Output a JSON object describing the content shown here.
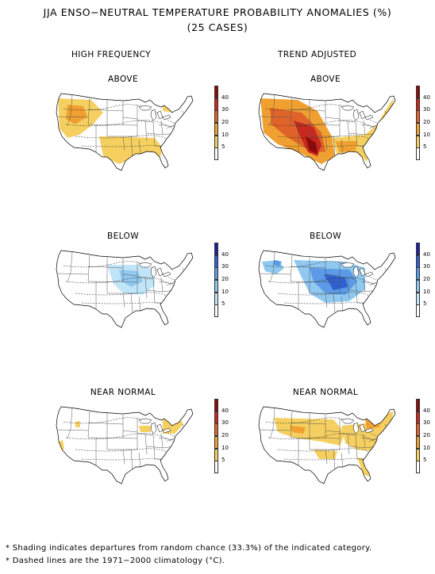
{
  "title": {
    "line1": "JJA ENSO−NEUTRAL TEMPERATURE PROBABILITY ANOMALIES (%)",
    "line2": "(25 CASES)"
  },
  "columns": {
    "left": "HIGH FREQUENCY",
    "right": "TREND ADJUSTED"
  },
  "panels": {
    "hf_above": "ABOVE",
    "ta_above": "ABOVE",
    "hf_below": "BELOW",
    "ta_below": "BELOW",
    "hf_normal": "NEAR NORMAL",
    "ta_normal": "NEAR NORMAL"
  },
  "colorbar": {
    "ticks": [
      "40",
      "30",
      "20",
      "10",
      "5"
    ],
    "warm_colors": [
      "#8b0a0a",
      "#c8281e",
      "#e0642a",
      "#f0a030",
      "#f5d060",
      "#ffffff"
    ],
    "cool_colors": [
      "#2020a0",
      "#3060d0",
      "#5a9ae6",
      "#90c8f0",
      "#c0e4f8",
      "#ffffff"
    ]
  },
  "footnotes": {
    "line1": "* Shading indicates departures from random chance (33.3%) of the indicated category.",
    "line2": "* Dashed lines are the 1971−2000 climatology (°C)."
  }
}
